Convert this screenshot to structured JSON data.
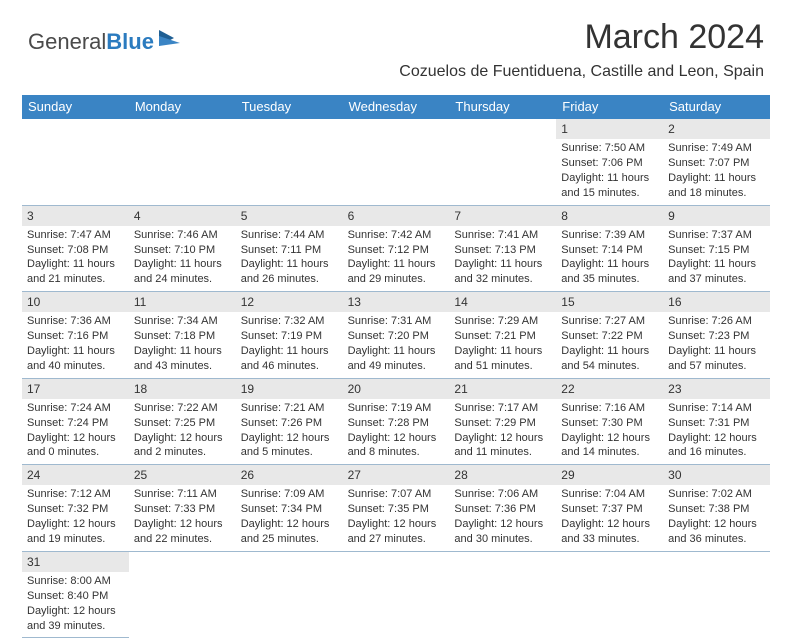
{
  "logo": {
    "text1": "General",
    "text2": "Blue"
  },
  "title": "March 2024",
  "location": "Cozuelos de Fuentiduena, Castille and Leon, Spain",
  "weekdays": [
    "Sunday",
    "Monday",
    "Tuesday",
    "Wednesday",
    "Thursday",
    "Friday",
    "Saturday"
  ],
  "colors": {
    "header_bg": "#3a84c4",
    "header_text": "#ffffff",
    "border": "#9fb9cf",
    "daynum_bg": "#e8e8e8",
    "text": "#333333"
  },
  "leading_blanks": 5,
  "days": [
    {
      "n": "1",
      "sunrise": "7:50 AM",
      "sunset": "7:06 PM",
      "day_h": 11,
      "day_m": 15
    },
    {
      "n": "2",
      "sunrise": "7:49 AM",
      "sunset": "7:07 PM",
      "day_h": 11,
      "day_m": 18
    },
    {
      "n": "3",
      "sunrise": "7:47 AM",
      "sunset": "7:08 PM",
      "day_h": 11,
      "day_m": 21
    },
    {
      "n": "4",
      "sunrise": "7:46 AM",
      "sunset": "7:10 PM",
      "day_h": 11,
      "day_m": 24
    },
    {
      "n": "5",
      "sunrise": "7:44 AM",
      "sunset": "7:11 PM",
      "day_h": 11,
      "day_m": 26
    },
    {
      "n": "6",
      "sunrise": "7:42 AM",
      "sunset": "7:12 PM",
      "day_h": 11,
      "day_m": 29
    },
    {
      "n": "7",
      "sunrise": "7:41 AM",
      "sunset": "7:13 PM",
      "day_h": 11,
      "day_m": 32
    },
    {
      "n": "8",
      "sunrise": "7:39 AM",
      "sunset": "7:14 PM",
      "day_h": 11,
      "day_m": 35
    },
    {
      "n": "9",
      "sunrise": "7:37 AM",
      "sunset": "7:15 PM",
      "day_h": 11,
      "day_m": 37
    },
    {
      "n": "10",
      "sunrise": "7:36 AM",
      "sunset": "7:16 PM",
      "day_h": 11,
      "day_m": 40
    },
    {
      "n": "11",
      "sunrise": "7:34 AM",
      "sunset": "7:18 PM",
      "day_h": 11,
      "day_m": 43
    },
    {
      "n": "12",
      "sunrise": "7:32 AM",
      "sunset": "7:19 PM",
      "day_h": 11,
      "day_m": 46
    },
    {
      "n": "13",
      "sunrise": "7:31 AM",
      "sunset": "7:20 PM",
      "day_h": 11,
      "day_m": 49
    },
    {
      "n": "14",
      "sunrise": "7:29 AM",
      "sunset": "7:21 PM",
      "day_h": 11,
      "day_m": 51
    },
    {
      "n": "15",
      "sunrise": "7:27 AM",
      "sunset": "7:22 PM",
      "day_h": 11,
      "day_m": 54
    },
    {
      "n": "16",
      "sunrise": "7:26 AM",
      "sunset": "7:23 PM",
      "day_h": 11,
      "day_m": 57
    },
    {
      "n": "17",
      "sunrise": "7:24 AM",
      "sunset": "7:24 PM",
      "day_h": 12,
      "day_m": 0
    },
    {
      "n": "18",
      "sunrise": "7:22 AM",
      "sunset": "7:25 PM",
      "day_h": 12,
      "day_m": 2
    },
    {
      "n": "19",
      "sunrise": "7:21 AM",
      "sunset": "7:26 PM",
      "day_h": 12,
      "day_m": 5
    },
    {
      "n": "20",
      "sunrise": "7:19 AM",
      "sunset": "7:28 PM",
      "day_h": 12,
      "day_m": 8
    },
    {
      "n": "21",
      "sunrise": "7:17 AM",
      "sunset": "7:29 PM",
      "day_h": 12,
      "day_m": 11
    },
    {
      "n": "22",
      "sunrise": "7:16 AM",
      "sunset": "7:30 PM",
      "day_h": 12,
      "day_m": 14
    },
    {
      "n": "23",
      "sunrise": "7:14 AM",
      "sunset": "7:31 PM",
      "day_h": 12,
      "day_m": 16
    },
    {
      "n": "24",
      "sunrise": "7:12 AM",
      "sunset": "7:32 PM",
      "day_h": 12,
      "day_m": 19
    },
    {
      "n": "25",
      "sunrise": "7:11 AM",
      "sunset": "7:33 PM",
      "day_h": 12,
      "day_m": 22
    },
    {
      "n": "26",
      "sunrise": "7:09 AM",
      "sunset": "7:34 PM",
      "day_h": 12,
      "day_m": 25
    },
    {
      "n": "27",
      "sunrise": "7:07 AM",
      "sunset": "7:35 PM",
      "day_h": 12,
      "day_m": 27
    },
    {
      "n": "28",
      "sunrise": "7:06 AM",
      "sunset": "7:36 PM",
      "day_h": 12,
      "day_m": 30
    },
    {
      "n": "29",
      "sunrise": "7:04 AM",
      "sunset": "7:37 PM",
      "day_h": 12,
      "day_m": 33
    },
    {
      "n": "30",
      "sunrise": "7:02 AM",
      "sunset": "7:38 PM",
      "day_h": 12,
      "day_m": 36
    },
    {
      "n": "31",
      "sunrise": "8:00 AM",
      "sunset": "8:40 PM",
      "day_h": 12,
      "day_m": 39
    }
  ],
  "labels": {
    "sunrise": "Sunrise:",
    "sunset": "Sunset:",
    "daylight": "Daylight:",
    "hours": "hours",
    "and": "and",
    "minutes": "minutes."
  }
}
